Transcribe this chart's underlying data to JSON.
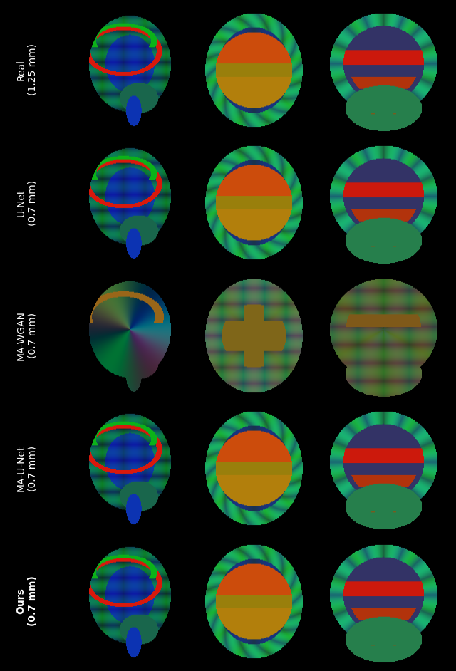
{
  "row_labels": [
    "Real\n(1.25 mm)",
    "U-Net\n(0.7 mm)",
    "MA-WGAN\n(0.7 mm)",
    "MA-U-Net\n(0.7 mm)",
    "Ours\n(0.7 mm)"
  ],
  "row_label_bold": [
    false,
    false,
    false,
    false,
    true
  ],
  "n_rows": 5,
  "n_cols": 3,
  "background_color": "#000000",
  "label_color": "#ffffff",
  "label_fontsize": 10,
  "fig_width": 6.4,
  "fig_height": 9.42
}
